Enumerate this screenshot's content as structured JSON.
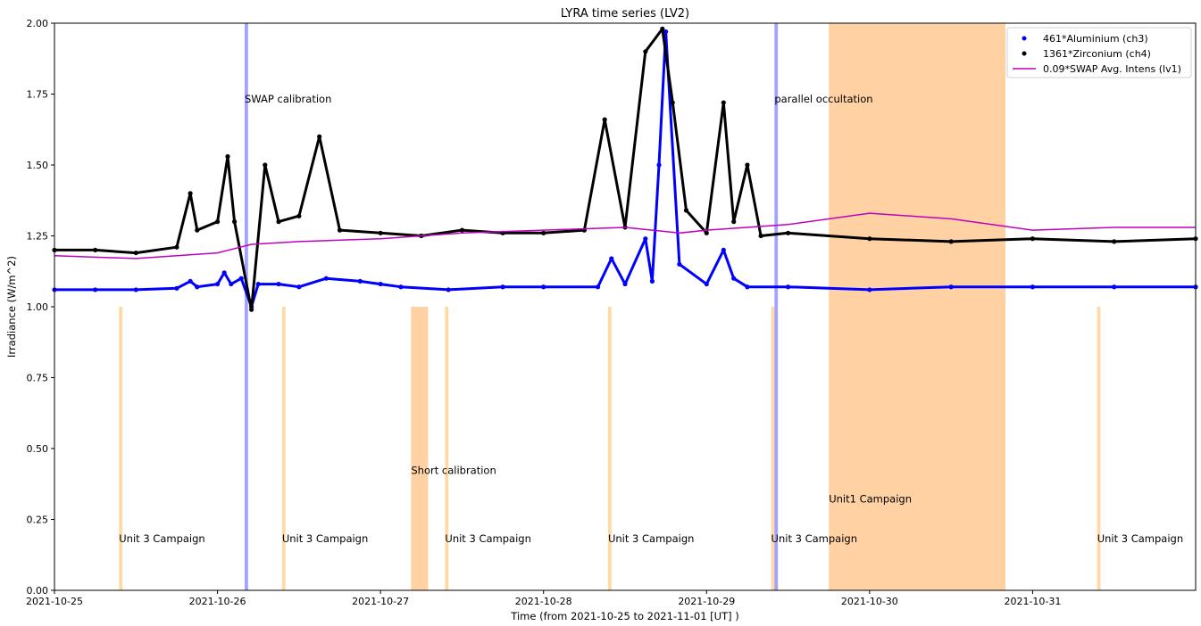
{
  "chart_data": {
    "type": "scatter",
    "title": "LYRA time series (LV2)",
    "xlabel": "Time (from 2021-10-25 to 2021-11-01 [UT] )",
    "ylabel": "Irradiance (W/m^2)",
    "x_unit": "days",
    "xlim": [
      "2021-10-25 00:00",
      "2021-11-01 00:00"
    ],
    "ylim": [
      0.0,
      2.0
    ],
    "x_ticks": [
      "2021-10-25",
      "2021-10-26",
      "2021-10-27",
      "2021-10-28",
      "2021-10-29",
      "2021-10-30",
      "2021-10-31"
    ],
    "y_ticks": [
      "0.00",
      "0.25",
      "0.50",
      "0.75",
      "1.00",
      "1.25",
      "1.50",
      "1.75",
      "2.00"
    ],
    "legend_position": "top-right",
    "colors": {
      "ch3": "#0000ff",
      "ch4": "#000000",
      "swap": "#bf00bf",
      "campaign_unit3": "#ffd699",
      "campaign_unit1": "#ffcc99",
      "calibration": "#9999ff"
    },
    "series": [
      {
        "name": "461*Aluminium (ch3)",
        "marker": "dot",
        "color": "#0000ff",
        "points": [
          [
            "2021-10-25 00:00",
            1.06
          ],
          [
            "2021-10-25 06:00",
            1.06
          ],
          [
            "2021-10-25 12:00",
            1.06
          ],
          [
            "2021-10-25 18:00",
            1.065
          ],
          [
            "2021-10-25 20:00",
            1.09
          ],
          [
            "2021-10-25 21:00",
            1.07
          ],
          [
            "2021-10-26 00:00",
            1.08
          ],
          [
            "2021-10-26 01:00",
            1.12
          ],
          [
            "2021-10-26 02:00",
            1.08
          ],
          [
            "2021-10-26 03:30",
            1.1
          ],
          [
            "2021-10-26 05:00",
            1.0
          ],
          [
            "2021-10-26 06:00",
            1.08
          ],
          [
            "2021-10-26 09:00",
            1.08
          ],
          [
            "2021-10-26 12:00",
            1.07
          ],
          [
            "2021-10-26 16:00",
            1.1
          ],
          [
            "2021-10-26 21:00",
            1.09
          ],
          [
            "2021-10-27 00:00",
            1.08
          ],
          [
            "2021-10-27 03:00",
            1.07
          ],
          [
            "2021-10-27 10:00",
            1.06
          ],
          [
            "2021-10-27 18:00",
            1.07
          ],
          [
            "2021-10-28 00:00",
            1.07
          ],
          [
            "2021-10-28 08:00",
            1.07
          ],
          [
            "2021-10-28 10:00",
            1.17
          ],
          [
            "2021-10-28 12:00",
            1.08
          ],
          [
            "2021-10-28 15:00",
            1.24
          ],
          [
            "2021-10-28 16:00",
            1.09
          ],
          [
            "2021-10-28 17:00",
            1.5
          ],
          [
            "2021-10-28 18:00",
            1.97
          ],
          [
            "2021-10-28 20:00",
            1.15
          ],
          [
            "2021-10-29 00:00",
            1.08
          ],
          [
            "2021-10-29 02:30",
            1.2
          ],
          [
            "2021-10-29 04:00",
            1.1
          ],
          [
            "2021-10-29 06:00",
            1.07
          ],
          [
            "2021-10-29 12:00",
            1.07
          ],
          [
            "2021-10-30 00:00",
            1.06
          ],
          [
            "2021-10-30 12:00",
            1.07
          ],
          [
            "2021-10-31 00:00",
            1.07
          ],
          [
            "2021-10-31 12:00",
            1.07
          ],
          [
            "2021-11-01 00:00",
            1.07
          ]
        ]
      },
      {
        "name": "1361*Zirconium (ch4)",
        "marker": "dot",
        "color": "#000000",
        "points": [
          [
            "2021-10-25 00:00",
            1.2
          ],
          [
            "2021-10-25 06:00",
            1.2
          ],
          [
            "2021-10-25 12:00",
            1.19
          ],
          [
            "2021-10-25 18:00",
            1.21
          ],
          [
            "2021-10-25 20:00",
            1.4
          ],
          [
            "2021-10-25 21:00",
            1.27
          ],
          [
            "2021-10-26 00:00",
            1.3
          ],
          [
            "2021-10-26 01:30",
            1.53
          ],
          [
            "2021-10-26 02:30",
            1.3
          ],
          [
            "2021-10-26 05:00",
            0.99
          ],
          [
            "2021-10-26 07:00",
            1.5
          ],
          [
            "2021-10-26 09:00",
            1.3
          ],
          [
            "2021-10-26 12:00",
            1.32
          ],
          [
            "2021-10-26 15:00",
            1.6
          ],
          [
            "2021-10-26 18:00",
            1.27
          ],
          [
            "2021-10-27 00:00",
            1.26
          ],
          [
            "2021-10-27 06:00",
            1.25
          ],
          [
            "2021-10-27 12:00",
            1.27
          ],
          [
            "2021-10-27 18:00",
            1.26
          ],
          [
            "2021-10-28 00:00",
            1.26
          ],
          [
            "2021-10-28 06:00",
            1.27
          ],
          [
            "2021-10-28 09:00",
            1.66
          ],
          [
            "2021-10-28 12:00",
            1.28
          ],
          [
            "2021-10-28 15:00",
            1.9
          ],
          [
            "2021-10-28 17:30",
            1.98
          ],
          [
            "2021-10-28 19:00",
            1.72
          ],
          [
            "2021-10-28 21:00",
            1.34
          ],
          [
            "2021-10-29 00:00",
            1.26
          ],
          [
            "2021-10-29 02:30",
            1.72
          ],
          [
            "2021-10-29 04:00",
            1.3
          ],
          [
            "2021-10-29 06:00",
            1.5
          ],
          [
            "2021-10-29 08:00",
            1.25
          ],
          [
            "2021-10-29 12:00",
            1.26
          ],
          [
            "2021-10-30 00:00",
            1.24
          ],
          [
            "2021-10-30 12:00",
            1.23
          ],
          [
            "2021-10-31 00:00",
            1.24
          ],
          [
            "2021-10-31 12:00",
            1.23
          ],
          [
            "2021-11-01 00:00",
            1.24
          ]
        ]
      },
      {
        "name": "0.09*SWAP Avg. Intens (lv1)",
        "marker": "line",
        "color": "#bf00bf",
        "points": [
          [
            "2021-10-25 00:00",
            1.18
          ],
          [
            "2021-10-25 12:00",
            1.17
          ],
          [
            "2021-10-26 00:00",
            1.19
          ],
          [
            "2021-10-26 05:00",
            1.22
          ],
          [
            "2021-10-26 12:00",
            1.23
          ],
          [
            "2021-10-27 00:00",
            1.24
          ],
          [
            "2021-10-27 12:00",
            1.26
          ],
          [
            "2021-10-28 00:00",
            1.27
          ],
          [
            "2021-10-28 12:00",
            1.28
          ],
          [
            "2021-10-28 20:00",
            1.26
          ],
          [
            "2021-10-29 00:00",
            1.27
          ],
          [
            "2021-10-29 12:00",
            1.29
          ],
          [
            "2021-10-30 00:00",
            1.33
          ],
          [
            "2021-10-30 12:00",
            1.31
          ],
          [
            "2021-10-31 00:00",
            1.27
          ],
          [
            "2021-10-31 12:00",
            1.28
          ],
          [
            "2021-11-01 00:00",
            1.28
          ]
        ]
      }
    ],
    "regions": [
      {
        "label": "Unit 3 Campaign",
        "start": "2021-10-25 09:30",
        "end": "2021-10-25 10:00",
        "ytop": 1.0,
        "color": "#ffd699"
      },
      {
        "label": "Unit 3 Campaign",
        "start": "2021-10-26 09:30",
        "end": "2021-10-26 10:00",
        "ytop": 1.0,
        "color": "#ffd699"
      },
      {
        "label": "Unit 3 Campaign",
        "start": "2021-10-27 09:30",
        "end": "2021-10-27 10:00",
        "ytop": 1.0,
        "color": "#ffd699"
      },
      {
        "label": "Unit 3 Campaign",
        "start": "2021-10-28 09:30",
        "end": "2021-10-28 10:00",
        "ytop": 1.0,
        "color": "#ffd699"
      },
      {
        "label": "Unit 3 Campaign",
        "start": "2021-10-29 09:30",
        "end": "2021-10-29 10:00",
        "ytop": 1.0,
        "color": "#ffd699"
      },
      {
        "label": "Unit 3 Campaign",
        "start": "2021-10-31 09:30",
        "end": "2021-10-31 10:00",
        "ytop": 1.0,
        "color": "#ffd699"
      },
      {
        "label": "Short calibration",
        "start": "2021-10-27 04:30",
        "end": "2021-10-27 07:00",
        "ytop": 1.0,
        "color": "#ffcc99"
      },
      {
        "label": "Unit1 Campaign",
        "start": "2021-10-29 18:00",
        "end": "2021-10-30 20:00",
        "ytop": 2.0,
        "color": "#ffcc99"
      },
      {
        "label": "SWAP calibration",
        "start": "2021-10-26 04:00",
        "end": "2021-10-26 04:30",
        "ytop": 2.0,
        "color": "#9999ff"
      },
      {
        "label": "parallel occultation",
        "start": "2021-10-29 10:00",
        "end": "2021-10-29 10:30",
        "ytop": 2.0,
        "color": "#9999ff"
      }
    ]
  }
}
